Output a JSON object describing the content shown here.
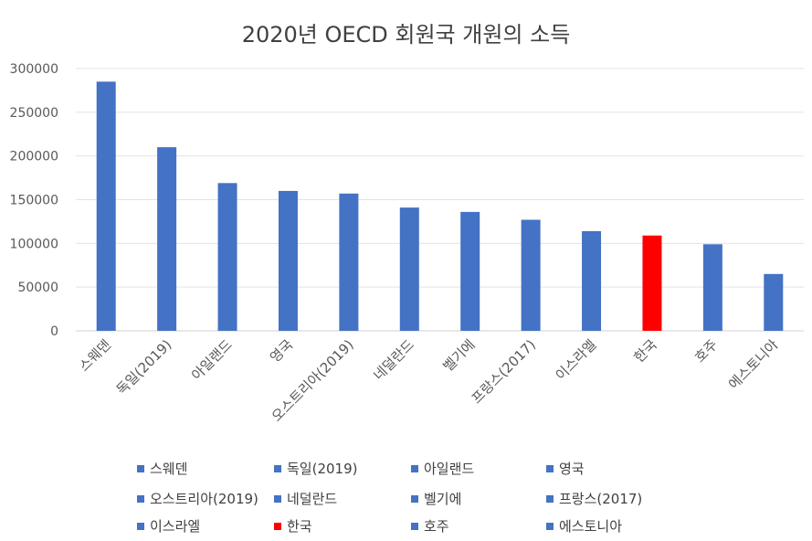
{
  "chart_data": {
    "type": "bar",
    "title": "2020년 OECD 회원국 개원의 소득",
    "categories": [
      "스웨덴",
      "독일(2019)",
      "아일랜드",
      "영국",
      "오스트리아(2019)",
      "네덜란드",
      "벨기에",
      "프랑스(2017)",
      "이스라엘",
      "한국",
      "호주",
      "에스토니아"
    ],
    "values": [
      285000,
      210000,
      169000,
      160000,
      157000,
      141000,
      136000,
      127000,
      114000,
      109000,
      99000,
      65000
    ],
    "colors": [
      "#4472C4",
      "#4472C4",
      "#4472C4",
      "#4472C4",
      "#4472C4",
      "#4472C4",
      "#4472C4",
      "#4472C4",
      "#4472C4",
      "#FF0000",
      "#4472C4",
      "#4472C4"
    ],
    "ylim": [
      0,
      300000
    ],
    "yticks": [
      "0",
      "50000",
      "100000",
      "150000",
      "200000",
      "250000",
      "300000"
    ],
    "xlabel": "",
    "ylabel": "",
    "grid": true,
    "legend_placement": "bottom"
  }
}
